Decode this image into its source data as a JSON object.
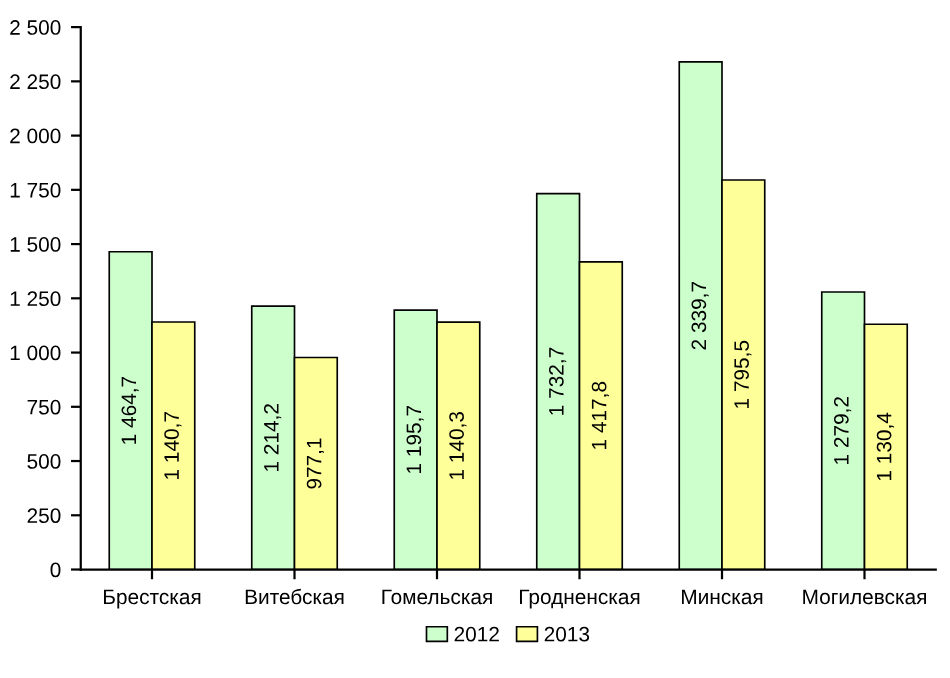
{
  "chart_data": {
    "type": "bar",
    "categories": [
      "Брестская",
      "Витебская",
      "Гомельская",
      "Гродненская",
      "Минская",
      "Могилевская"
    ],
    "series": [
      {
        "name": "2012",
        "color": "#ccffcc",
        "values": [
          1464.7,
          1214.2,
          1195.7,
          1732.7,
          2339.7,
          1279.2
        ],
        "value_labels": [
          "1 464,7",
          "1 214,2",
          "1 195,7",
          "1 732,7",
          "2 339,7",
          "1 279,2"
        ]
      },
      {
        "name": "2013",
        "color": "#ffff99",
        "values": [
          1140.7,
          977.1,
          1140.3,
          1417.8,
          1795.5,
          1130.4
        ],
        "value_labels": [
          "1 140,7",
          "977,1",
          "1 140,3",
          "1 417,8",
          "1 795,5",
          "1 130,4"
        ]
      }
    ],
    "ylim": [
      0,
      2500
    ],
    "yticks": [
      0,
      250,
      500,
      750,
      {
        "value": 1000,
        "label": "1 000"
      },
      {
        "value": 1250,
        "label": "1 250"
      },
      {
        "value": 1500,
        "label": "1 500"
      },
      {
        "value": 1750,
        "label": "1 750"
      },
      {
        "value": 2000,
        "label": "2 000"
      },
      {
        "value": 2250,
        "label": "2 250"
      },
      {
        "value": 2500,
        "label": "2 500"
      }
    ],
    "legend": "bottom",
    "grid": false
  }
}
